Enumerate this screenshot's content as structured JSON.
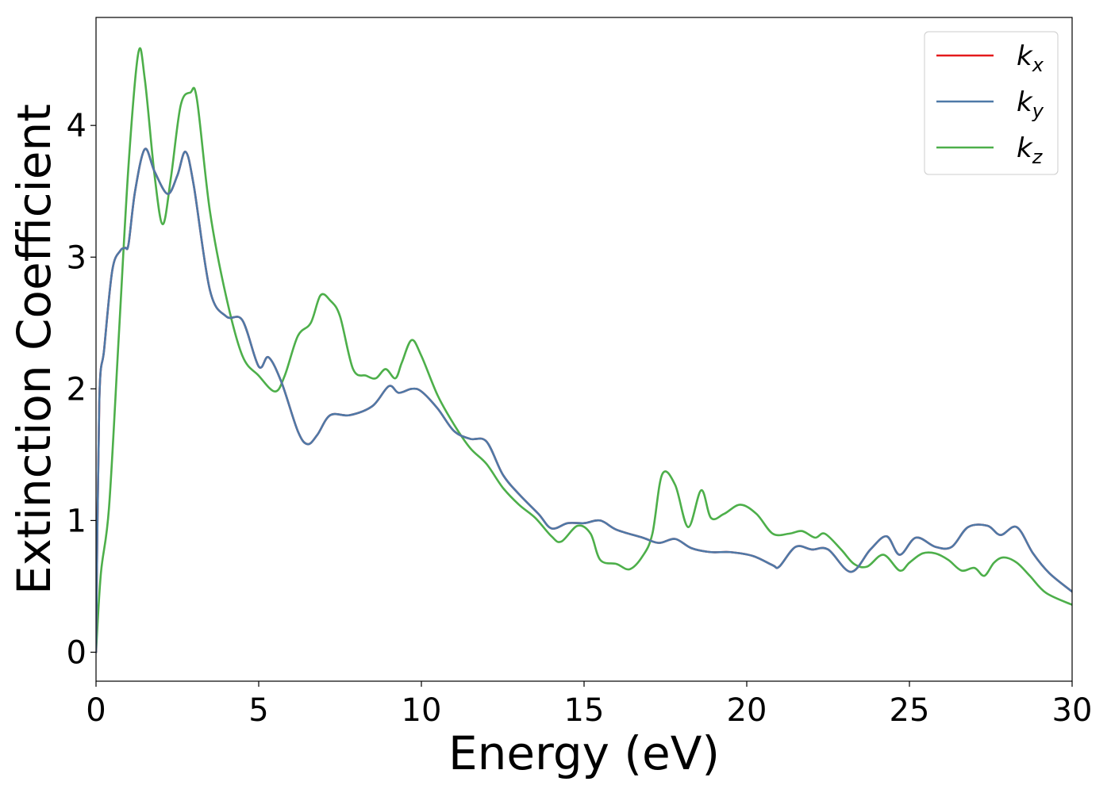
{
  "chart_data": {
    "type": "line",
    "title": "",
    "xlabel": "Energy (eV)",
    "ylabel": "Extinction Coefficient",
    "xlim": [
      0,
      30
    ],
    "ylim": [
      -0.22,
      4.82
    ],
    "xticks": [
      0,
      5,
      10,
      15,
      20,
      25,
      30
    ],
    "xtick_labels": [
      "0",
      "5",
      "10",
      "15",
      "20",
      "25",
      "30"
    ],
    "yticks": [
      0,
      1,
      2,
      3,
      4
    ],
    "ytick_labels": [
      "0",
      "1",
      "2",
      "3",
      "4"
    ],
    "grid": false,
    "legend_position": "top-right",
    "series": [
      {
        "name": "k_x",
        "legend_base": "k",
        "legend_sub": "x",
        "color": "#e41a1c",
        "x": [
          0,
          0.1,
          0.25,
          0.5,
          0.75,
          0.9,
          1.0,
          1.2,
          1.5,
          1.8,
          2.2,
          2.5,
          2.75,
          3.0,
          3.5,
          4.0,
          4.5,
          5.0,
          5.3,
          5.7,
          6.2,
          6.5,
          6.8,
          7.2,
          7.8,
          8.5,
          9.0,
          9.3,
          9.7,
          10.0,
          10.5,
          11.0,
          11.5,
          12.0,
          12.5,
          13.0,
          13.6,
          14.0,
          14.5,
          15.0,
          15.5,
          16.0,
          16.8,
          17.3,
          17.8,
          18.3,
          18.9,
          19.5,
          20.2,
          20.8,
          21.0,
          21.5,
          22.0,
          22.5,
          23.2,
          23.8,
          24.3,
          24.7,
          25.2,
          25.8,
          26.3,
          26.8,
          27.4,
          27.8,
          28.3,
          28.8,
          29.3,
          30.0
        ],
        "values": [
          0,
          1.9,
          2.3,
          2.9,
          3.05,
          3.07,
          3.1,
          3.5,
          3.82,
          3.65,
          3.48,
          3.62,
          3.8,
          3.55,
          2.75,
          2.55,
          2.52,
          2.17,
          2.24,
          2.05,
          1.68,
          1.58,
          1.65,
          1.8,
          1.8,
          1.87,
          2.02,
          1.97,
          2.0,
          1.98,
          1.85,
          1.68,
          1.62,
          1.6,
          1.35,
          1.2,
          1.05,
          0.94,
          0.98,
          0.98,
          1.0,
          0.93,
          0.87,
          0.83,
          0.86,
          0.79,
          0.76,
          0.76,
          0.73,
          0.66,
          0.65,
          0.8,
          0.78,
          0.78,
          0.61,
          0.78,
          0.88,
          0.74,
          0.87,
          0.8,
          0.8,
          0.95,
          0.96,
          0.89,
          0.95,
          0.75,
          0.6,
          0.46
        ]
      },
      {
        "name": "k_y",
        "legend_base": "k",
        "legend_sub": "y",
        "color": "#4e79a7",
        "x": [
          0,
          0.1,
          0.25,
          0.5,
          0.75,
          0.9,
          1.0,
          1.2,
          1.5,
          1.8,
          2.2,
          2.5,
          2.75,
          3.0,
          3.5,
          4.0,
          4.5,
          5.0,
          5.3,
          5.7,
          6.2,
          6.5,
          6.8,
          7.2,
          7.8,
          8.5,
          9.0,
          9.3,
          9.7,
          10.0,
          10.5,
          11.0,
          11.5,
          12.0,
          12.5,
          13.0,
          13.6,
          14.0,
          14.5,
          15.0,
          15.5,
          16.0,
          16.8,
          17.3,
          17.8,
          18.3,
          18.9,
          19.5,
          20.2,
          20.8,
          21.0,
          21.5,
          22.0,
          22.5,
          23.2,
          23.8,
          24.3,
          24.7,
          25.2,
          25.8,
          26.3,
          26.8,
          27.4,
          27.8,
          28.3,
          28.8,
          29.3,
          30.0
        ],
        "values": [
          0,
          1.9,
          2.3,
          2.9,
          3.05,
          3.07,
          3.1,
          3.5,
          3.82,
          3.65,
          3.48,
          3.62,
          3.8,
          3.55,
          2.75,
          2.55,
          2.52,
          2.17,
          2.24,
          2.05,
          1.68,
          1.58,
          1.65,
          1.8,
          1.8,
          1.87,
          2.02,
          1.97,
          2.0,
          1.98,
          1.85,
          1.68,
          1.62,
          1.6,
          1.35,
          1.2,
          1.05,
          0.94,
          0.98,
          0.98,
          1.0,
          0.93,
          0.87,
          0.83,
          0.86,
          0.79,
          0.76,
          0.76,
          0.73,
          0.66,
          0.65,
          0.8,
          0.78,
          0.78,
          0.61,
          0.78,
          0.88,
          0.74,
          0.87,
          0.8,
          0.8,
          0.95,
          0.96,
          0.89,
          0.95,
          0.75,
          0.6,
          0.46
        ]
      },
      {
        "name": "k_z",
        "legend_base": "k",
        "legend_sub": "z",
        "color": "#4daf4a",
        "x": [
          0,
          0.15,
          0.4,
          0.7,
          1.0,
          1.3,
          1.5,
          1.8,
          2.05,
          2.3,
          2.6,
          2.9,
          3.1,
          3.5,
          4.0,
          4.5,
          5.0,
          5.5,
          5.8,
          6.2,
          6.6,
          6.9,
          7.2,
          7.5,
          7.9,
          8.3,
          8.6,
          8.9,
          9.2,
          9.4,
          9.7,
          10.0,
          10.5,
          11.0,
          11.5,
          12.0,
          12.5,
          13.0,
          13.5,
          14.0,
          14.3,
          14.8,
          15.2,
          15.5,
          16.0,
          16.4,
          16.8,
          17.1,
          17.4,
          17.8,
          18.2,
          18.6,
          18.9,
          19.3,
          19.8,
          20.3,
          20.8,
          21.3,
          21.7,
          22.1,
          22.4,
          22.9,
          23.3,
          23.7,
          24.2,
          24.7,
          25.0,
          25.4,
          25.8,
          26.2,
          26.6,
          27.0,
          27.3,
          27.6,
          27.9,
          28.3,
          28.7,
          29.2,
          30.0
        ],
        "values": [
          0,
          0.6,
          1.1,
          2.4,
          3.7,
          4.55,
          4.35,
          3.62,
          3.25,
          3.6,
          4.15,
          4.25,
          4.2,
          3.35,
          2.7,
          2.25,
          2.1,
          1.98,
          2.1,
          2.4,
          2.5,
          2.71,
          2.67,
          2.55,
          2.15,
          2.1,
          2.08,
          2.15,
          2.08,
          2.2,
          2.37,
          2.25,
          1.95,
          1.73,
          1.55,
          1.43,
          1.25,
          1.12,
          1.02,
          0.88,
          0.84,
          0.96,
          0.9,
          0.7,
          0.67,
          0.63,
          0.73,
          0.9,
          1.35,
          1.27,
          0.95,
          1.23,
          1.02,
          1.05,
          1.12,
          1.05,
          0.9,
          0.9,
          0.92,
          0.87,
          0.9,
          0.78,
          0.67,
          0.65,
          0.74,
          0.62,
          0.68,
          0.75,
          0.75,
          0.7,
          0.62,
          0.64,
          0.58,
          0.68,
          0.72,
          0.68,
          0.58,
          0.45,
          0.36
        ]
      }
    ]
  }
}
